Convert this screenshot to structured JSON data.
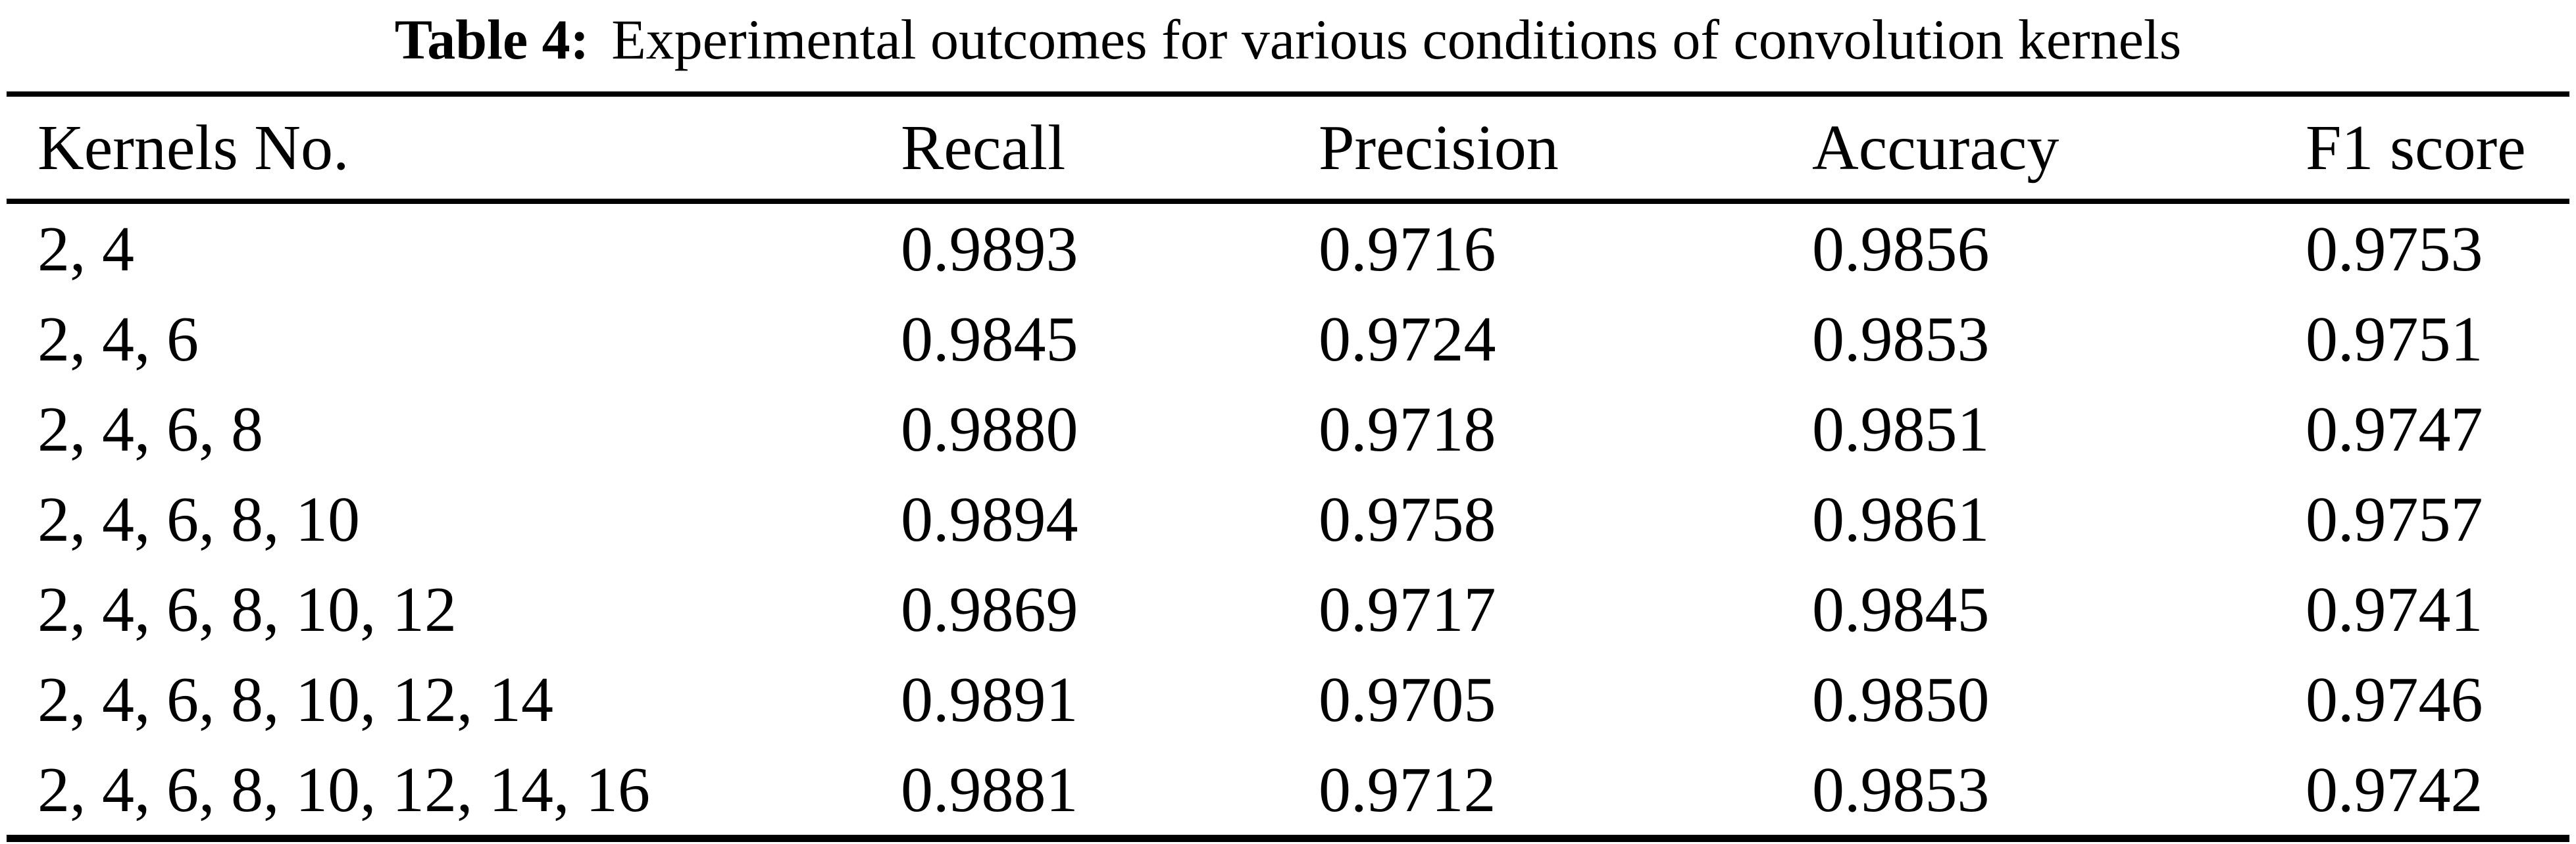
{
  "caption": {
    "label": "Table 4:",
    "text": "Experimental outcomes for various conditions of convolution kernels"
  },
  "table": {
    "columns": [
      "Kernels No.",
      "Recall",
      "Precision",
      "Accuracy",
      "F1 score"
    ],
    "rows": [
      [
        "2, 4",
        "0.9893",
        "0.9716",
        "0.9856",
        "0.9753"
      ],
      [
        "2, 4, 6",
        "0.9845",
        "0.9724",
        "0.9853",
        "0.9751"
      ],
      [
        "2, 4, 6, 8",
        "0.9880",
        "0.9718",
        "0.9851",
        "0.9747"
      ],
      [
        "2, 4, 6, 8, 10",
        "0.9894",
        "0.9758",
        "0.9861",
        "0.9757"
      ],
      [
        "2, 4, 6, 8, 10, 12",
        "0.9869",
        "0.9717",
        "0.9845",
        "0.9741"
      ],
      [
        "2, 4, 6, 8, 10, 12, 14",
        "0.9891",
        "0.9705",
        "0.9850",
        "0.9746"
      ],
      [
        "2, 4, 6, 8, 10, 12, 14, 16",
        "0.9881",
        "0.9712",
        "0.9853",
        "0.9742"
      ]
    ]
  }
}
